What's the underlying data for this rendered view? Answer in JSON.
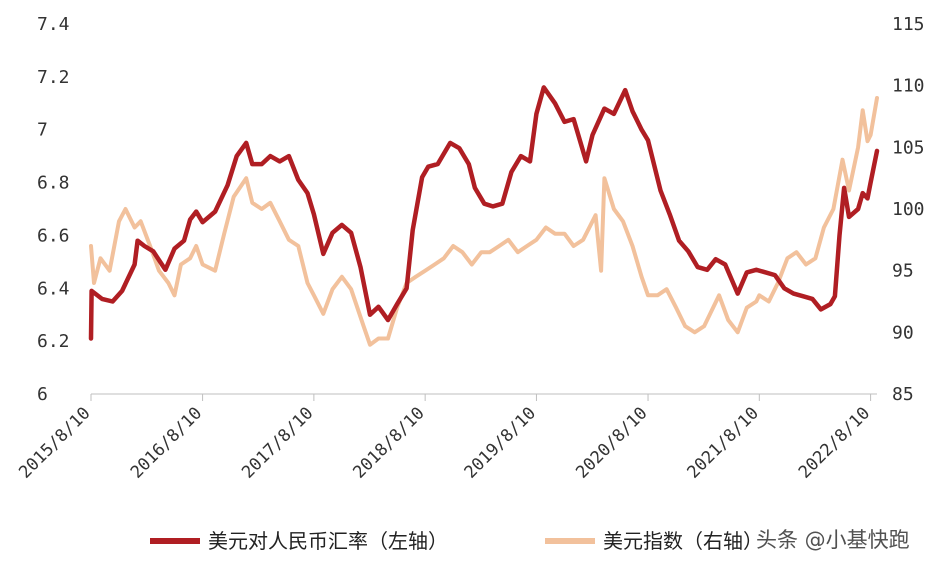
{
  "chart_data": {
    "type": "line",
    "title": "",
    "xlabel": "",
    "ylabel_left": "",
    "ylabel_right": "",
    "x_ticks": [
      "2015/8/10",
      "2016/8/10",
      "2017/8/10",
      "2018/8/10",
      "2019/8/10",
      "2020/8/10",
      "2021/8/10",
      "2022/8/10"
    ],
    "y_left_ticks": [
      "6",
      "6.2",
      "6.4",
      "6.6",
      "6.8",
      "7",
      "7.2",
      "7.4"
    ],
    "y_left_range": [
      6,
      7.4
    ],
    "y_right_ticks": [
      "85",
      "90",
      "95",
      "100",
      "105",
      "110",
      "115"
    ],
    "y_right_range": [
      85,
      115
    ],
    "grid": false,
    "legend_position": "bottom",
    "series": [
      {
        "name": "美元对人民币汇率（左轴）",
        "axis": "left",
        "color": "#b01e23",
        "points": [
          [
            "2015-08-10",
            6.21
          ],
          [
            "2015-08-12",
            6.39
          ],
          [
            "2015-09-15",
            6.36
          ],
          [
            "2015-10-20",
            6.35
          ],
          [
            "2015-11-20",
            6.39
          ],
          [
            "2015-12-31",
            6.49
          ],
          [
            "2016-01-10",
            6.58
          ],
          [
            "2016-02-01",
            6.56
          ],
          [
            "2016-03-01",
            6.54
          ],
          [
            "2016-04-10",
            6.47
          ],
          [
            "2016-05-10",
            6.55
          ],
          [
            "2016-06-10",
            6.58
          ],
          [
            "2016-06-30",
            6.66
          ],
          [
            "2016-07-20",
            6.69
          ],
          [
            "2016-08-10",
            6.65
          ],
          [
            "2016-09-20",
            6.69
          ],
          [
            "2016-10-31",
            6.79
          ],
          [
            "2016-11-30",
            6.9
          ],
          [
            "2016-12-31",
            6.95
          ],
          [
            "2017-01-20",
            6.87
          ],
          [
            "2017-02-20",
            6.87
          ],
          [
            "2017-03-20",
            6.9
          ],
          [
            "2017-04-20",
            6.88
          ],
          [
            "2017-05-20",
            6.9
          ],
          [
            "2017-06-20",
            6.81
          ],
          [
            "2017-07-20",
            6.76
          ],
          [
            "2017-08-10",
            6.68
          ],
          [
            "2017-09-10",
            6.53
          ],
          [
            "2017-10-10",
            6.61
          ],
          [
            "2017-11-10",
            6.64
          ],
          [
            "2017-12-10",
            6.61
          ],
          [
            "2018-01-10",
            6.48
          ],
          [
            "2018-02-10",
            6.3
          ],
          [
            "2018-03-10",
            6.33
          ],
          [
            "2018-04-10",
            6.28
          ],
          [
            "2018-05-10",
            6.34
          ],
          [
            "2018-06-10",
            6.4
          ],
          [
            "2018-06-30",
            6.62
          ],
          [
            "2018-07-31",
            6.82
          ],
          [
            "2018-08-20",
            6.86
          ],
          [
            "2018-09-20",
            6.87
          ],
          [
            "2018-10-31",
            6.95
          ],
          [
            "2018-11-30",
            6.93
          ],
          [
            "2018-12-31",
            6.87
          ],
          [
            "2019-01-20",
            6.78
          ],
          [
            "2019-02-20",
            6.72
          ],
          [
            "2019-03-20",
            6.71
          ],
          [
            "2019-04-20",
            6.72
          ],
          [
            "2019-05-20",
            6.84
          ],
          [
            "2019-06-20",
            6.9
          ],
          [
            "2019-07-20",
            6.88
          ],
          [
            "2019-08-10",
            7.06
          ],
          [
            "2019-09-03",
            7.16
          ],
          [
            "2019-10-10",
            7.1
          ],
          [
            "2019-11-10",
            7.03
          ],
          [
            "2019-12-10",
            7.04
          ],
          [
            "2020-01-20",
            6.88
          ],
          [
            "2020-02-10",
            6.98
          ],
          [
            "2020-03-20",
            7.08
          ],
          [
            "2020-04-20",
            7.06
          ],
          [
            "2020-05-27",
            7.15
          ],
          [
            "2020-06-20",
            7.07
          ],
          [
            "2020-07-20",
            7.0
          ],
          [
            "2020-08-10",
            6.96
          ],
          [
            "2020-09-20",
            6.77
          ],
          [
            "2020-10-20",
            6.68
          ],
          [
            "2020-11-20",
            6.58
          ],
          [
            "2020-12-20",
            6.54
          ],
          [
            "2021-01-20",
            6.48
          ],
          [
            "2021-02-20",
            6.47
          ],
          [
            "2021-03-20",
            6.51
          ],
          [
            "2021-04-20",
            6.49
          ],
          [
            "2021-05-31",
            6.38
          ],
          [
            "2021-06-30",
            6.46
          ],
          [
            "2021-07-31",
            6.47
          ],
          [
            "2021-08-31",
            6.46
          ],
          [
            "2021-09-30",
            6.45
          ],
          [
            "2021-10-31",
            6.4
          ],
          [
            "2021-11-30",
            6.38
          ],
          [
            "2021-12-31",
            6.37
          ],
          [
            "2022-01-31",
            6.36
          ],
          [
            "2022-02-28",
            6.32
          ],
          [
            "2022-03-31",
            6.34
          ],
          [
            "2022-04-15",
            6.37
          ],
          [
            "2022-04-30",
            6.6
          ],
          [
            "2022-05-15",
            6.78
          ],
          [
            "2022-05-31",
            6.67
          ],
          [
            "2022-06-30",
            6.7
          ],
          [
            "2022-07-15",
            6.76
          ],
          [
            "2022-07-31",
            6.74
          ],
          [
            "2022-08-10",
            6.8
          ],
          [
            "2022-08-31",
            6.92
          ]
        ]
      },
      {
        "name": "美元指数（右轴）",
        "axis": "right",
        "color": "#f2c19c",
        "points": [
          [
            "2015-08-10",
            97.0
          ],
          [
            "2015-08-20",
            94.0
          ],
          [
            "2015-09-10",
            96.0
          ],
          [
            "2015-10-10",
            95.0
          ],
          [
            "2015-11-10",
            99.0
          ],
          [
            "2015-12-01",
            100.0
          ],
          [
            "2015-12-31",
            98.5
          ],
          [
            "2016-01-20",
            99.0
          ],
          [
            "2016-02-20",
            97.0
          ],
          [
            "2016-03-20",
            95.0
          ],
          [
            "2016-04-20",
            94.0
          ],
          [
            "2016-05-10",
            93.0
          ],
          [
            "2016-05-31",
            95.5
          ],
          [
            "2016-06-30",
            96.0
          ],
          [
            "2016-07-20",
            97.0
          ],
          [
            "2016-08-10",
            95.5
          ],
          [
            "2016-09-20",
            95.0
          ],
          [
            "2016-10-20",
            98.0
          ],
          [
            "2016-11-20",
            101.0
          ],
          [
            "2016-12-31",
            102.5
          ],
          [
            "2017-01-20",
            100.5
          ],
          [
            "2017-02-20",
            100.0
          ],
          [
            "2017-03-20",
            100.5
          ],
          [
            "2017-04-20",
            99.0
          ],
          [
            "2017-05-20",
            97.5
          ],
          [
            "2017-06-20",
            97.0
          ],
          [
            "2017-07-20",
            94.0
          ],
          [
            "2017-08-10",
            93.0
          ],
          [
            "2017-09-10",
            91.5
          ],
          [
            "2017-10-10",
            93.5
          ],
          [
            "2017-11-10",
            94.5
          ],
          [
            "2017-12-10",
            93.5
          ],
          [
            "2018-01-20",
            90.5
          ],
          [
            "2018-02-10",
            89.0
          ],
          [
            "2018-03-10",
            89.5
          ],
          [
            "2018-04-10",
            89.5
          ],
          [
            "2018-05-10",
            92.0
          ],
          [
            "2018-06-10",
            94.0
          ],
          [
            "2018-07-10",
            94.5
          ],
          [
            "2018-08-10",
            95.0
          ],
          [
            "2018-09-10",
            95.5
          ],
          [
            "2018-10-10",
            96.0
          ],
          [
            "2018-11-10",
            97.0
          ],
          [
            "2018-12-10",
            96.5
          ],
          [
            "2019-01-10",
            95.5
          ],
          [
            "2019-02-10",
            96.5
          ],
          [
            "2019-03-10",
            96.5
          ],
          [
            "2019-04-10",
            97.0
          ],
          [
            "2019-05-10",
            97.5
          ],
          [
            "2019-06-10",
            96.5
          ],
          [
            "2019-07-10",
            97.0
          ],
          [
            "2019-08-10",
            97.5
          ],
          [
            "2019-09-10",
            98.5
          ],
          [
            "2019-10-10",
            98.0
          ],
          [
            "2019-11-10",
            98.0
          ],
          [
            "2019-12-10",
            97.0
          ],
          [
            "2020-01-10",
            97.5
          ],
          [
            "2020-02-20",
            99.5
          ],
          [
            "2020-03-09",
            95.0
          ],
          [
            "2020-03-20",
            102.5
          ],
          [
            "2020-04-20",
            100.0
          ],
          [
            "2020-05-20",
            99.0
          ],
          [
            "2020-06-20",
            97.0
          ],
          [
            "2020-07-20",
            94.5
          ],
          [
            "2020-08-10",
            93.0
          ],
          [
            "2020-09-10",
            93.0
          ],
          [
            "2020-10-10",
            93.5
          ],
          [
            "2020-11-10",
            92.0
          ],
          [
            "2020-12-10",
            90.5
          ],
          [
            "2021-01-10",
            90.0
          ],
          [
            "2021-02-10",
            90.5
          ],
          [
            "2021-03-31",
            93.0
          ],
          [
            "2021-04-30",
            91.0
          ],
          [
            "2021-05-31",
            90.0
          ],
          [
            "2021-06-30",
            92.0
          ],
          [
            "2021-07-31",
            92.5
          ],
          [
            "2021-08-10",
            93.0
          ],
          [
            "2021-09-10",
            92.5
          ],
          [
            "2021-10-10",
            94.0
          ],
          [
            "2021-11-10",
            96.0
          ],
          [
            "2021-12-10",
            96.5
          ],
          [
            "2022-01-10",
            95.5
          ],
          [
            "2022-02-10",
            96.0
          ],
          [
            "2022-03-10",
            98.5
          ],
          [
            "2022-04-10",
            100.0
          ],
          [
            "2022-05-10",
            104.0
          ],
          [
            "2022-05-31",
            101.5
          ],
          [
            "2022-06-30",
            105.0
          ],
          [
            "2022-07-15",
            108.0
          ],
          [
            "2022-07-31",
            105.5
          ],
          [
            "2022-08-10",
            106.0
          ],
          [
            "2022-08-31",
            109.0
          ]
        ]
      }
    ],
    "legend": [
      {
        "label": "美元对人民币汇率（左轴）",
        "color": "#b01e23"
      },
      {
        "label": "美元指数（右轴）",
        "color": "#f2c19c"
      }
    ]
  },
  "watermark": "头条 @小基快跑"
}
